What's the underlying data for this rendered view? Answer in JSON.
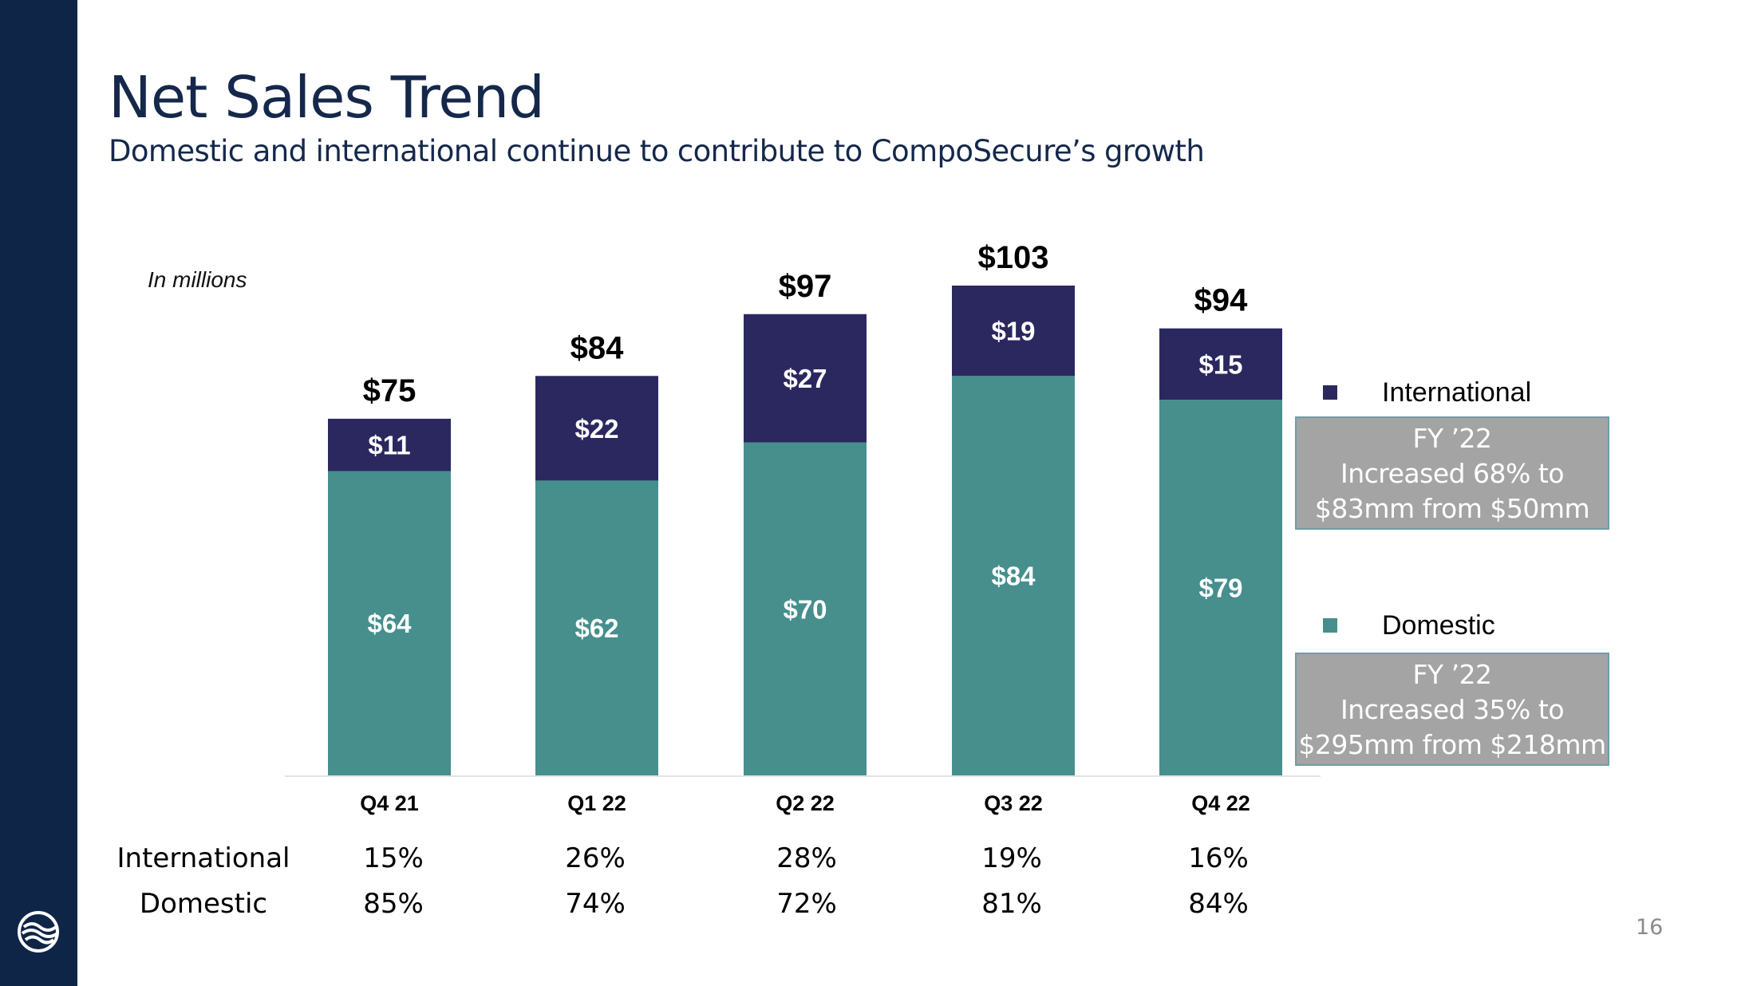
{
  "slide": {
    "title": "Net Sales Trend",
    "subtitle": "Domestic and international continue to contribute to CompoSecure’s growth",
    "units_note": "In millions",
    "page_number": "16"
  },
  "colors": {
    "sidebar": "#0f2548",
    "international": "#2b2860",
    "domestic": "#468f8d",
    "note_box": "#a4a4a4"
  },
  "chart_data": {
    "type": "bar",
    "stacked": true,
    "categories": [
      "Q4 21",
      "Q1 22",
      "Q2 22",
      "Q3 22",
      "Q4 22"
    ],
    "series": [
      {
        "name": "Domestic",
        "values": [
          64,
          62,
          70,
          84,
          79
        ],
        "labels": [
          "$64",
          "$62",
          "$70",
          "$84",
          "$79"
        ]
      },
      {
        "name": "International",
        "values": [
          11,
          22,
          27,
          19,
          15
        ],
        "labels": [
          "$11",
          "$22",
          "$27",
          "$19",
          "$15"
        ]
      }
    ],
    "totals": [
      75,
      84,
      97,
      103,
      94
    ],
    "total_labels": [
      "$75",
      "$84",
      "$97",
      "$103",
      "$94"
    ],
    "ylim": [
      0,
      103
    ],
    "grid": false,
    "legend": "right"
  },
  "legend": {
    "international": {
      "label": "International",
      "note_line1": "FY ’22",
      "note_line2": "Increased 68% to",
      "note_line3": "$83mm from $50mm"
    },
    "domestic": {
      "label": "Domestic",
      "note_line1": "FY ’22",
      "note_line2": "Increased 35% to",
      "note_line3": "$295mm from $218mm"
    }
  },
  "mix_table": {
    "international_label": "International",
    "domestic_label": "Domestic",
    "international": [
      "15%",
      "26%",
      "28%",
      "19%",
      "16%"
    ],
    "domestic": [
      "85%",
      "74%",
      "72%",
      "81%",
      "84%"
    ]
  }
}
